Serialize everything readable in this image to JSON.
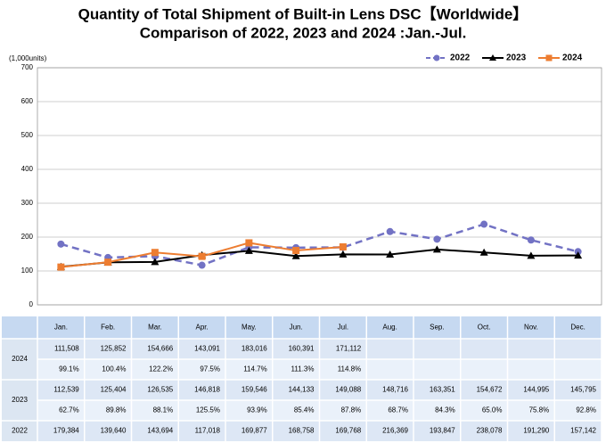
{
  "chart_data": {
    "type": "line",
    "title": "Quantity of Total Shipment of Built-in Lens DSC【Worldwide】",
    "subtitle": "Comparison of 2022, 2023 and 2024 :Jan.-Jul.",
    "y_label": "(1,000units)",
    "categories": [
      "Jan.",
      "Feb.",
      "Mar.",
      "Apr.",
      "May.",
      "Jun.",
      "Jul.",
      "Aug.",
      "Sep.",
      "Oct.",
      "Nov.",
      "Dec."
    ],
    "ylim": [
      0,
      700
    ],
    "yticks": [
      0,
      100,
      200,
      300,
      400,
      500,
      600,
      700
    ],
    "grid": true,
    "legend": "top-right",
    "series": [
      {
        "name": "2022",
        "color": "#7272c4",
        "dash": true,
        "marker": "circle",
        "values": [
          179.384,
          139.64,
          143.694,
          117.018,
          169.877,
          168.758,
          169.768,
          216.369,
          193.847,
          238.078,
          191.29,
          157.142
        ],
        "value_labels": [
          "179,384",
          "139,640",
          "143,694",
          "117,018",
          "169,877",
          "168,758",
          "169,768",
          "216,369",
          "193,847",
          "238,078",
          "191,290",
          "157,142"
        ]
      },
      {
        "name": "2023",
        "color": "#000000",
        "dash": false,
        "marker": "triangle",
        "values": [
          112.539,
          125.404,
          126.535,
          146.818,
          159.546,
          144.133,
          149.088,
          148.716,
          163.351,
          154.672,
          144.995,
          145.795
        ],
        "value_labels": [
          "112,539",
          "125,404",
          "126,535",
          "146,818",
          "159,546",
          "144,133",
          "149,088",
          "148,716",
          "163,351",
          "154,672",
          "144,995",
          "145,795"
        ],
        "yoy": [
          "62.7%",
          "89.8%",
          "88.1%",
          "125.5%",
          "93.9%",
          "85.4%",
          "87.8%",
          "68.7%",
          "84.3%",
          "65.0%",
          "75.8%",
          "92.8%"
        ]
      },
      {
        "name": "2024",
        "color": "#ed7d31",
        "dash": false,
        "marker": "square",
        "values": [
          111.508,
          125.852,
          154.666,
          143.091,
          183.016,
          160.391,
          171.112,
          null,
          null,
          null,
          null,
          null
        ],
        "value_labels": [
          "111,508",
          "125,852",
          "154,666",
          "143,091",
          "183,016",
          "160,391",
          "171,112",
          null,
          null,
          null,
          null,
          null
        ],
        "yoy": [
          "99.1%",
          "100.4%",
          "122.2%",
          "97.5%",
          "114.7%",
          "111.3%",
          "114.8%",
          null,
          null,
          null,
          null,
          null
        ]
      }
    ]
  }
}
